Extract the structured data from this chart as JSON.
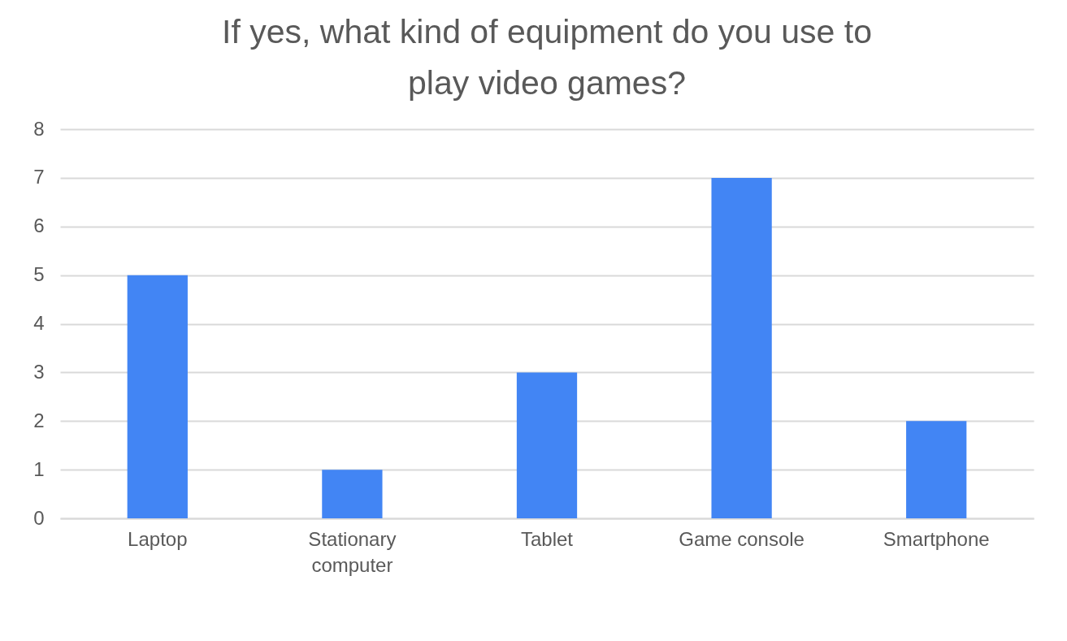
{
  "chart_data": {
    "type": "bar",
    "title": "If yes, what kind of equipment do you use to play video games?",
    "categories": [
      "Laptop",
      "Stationary computer",
      "Tablet",
      "Game console",
      "Smartphone"
    ],
    "values": [
      5,
      1,
      3,
      7,
      2
    ],
    "color": "#4285f4",
    "ylim": [
      0,
      8
    ],
    "yticks": [
      0,
      1,
      2,
      3,
      4,
      5,
      6,
      7,
      8
    ],
    "grid": "y"
  }
}
